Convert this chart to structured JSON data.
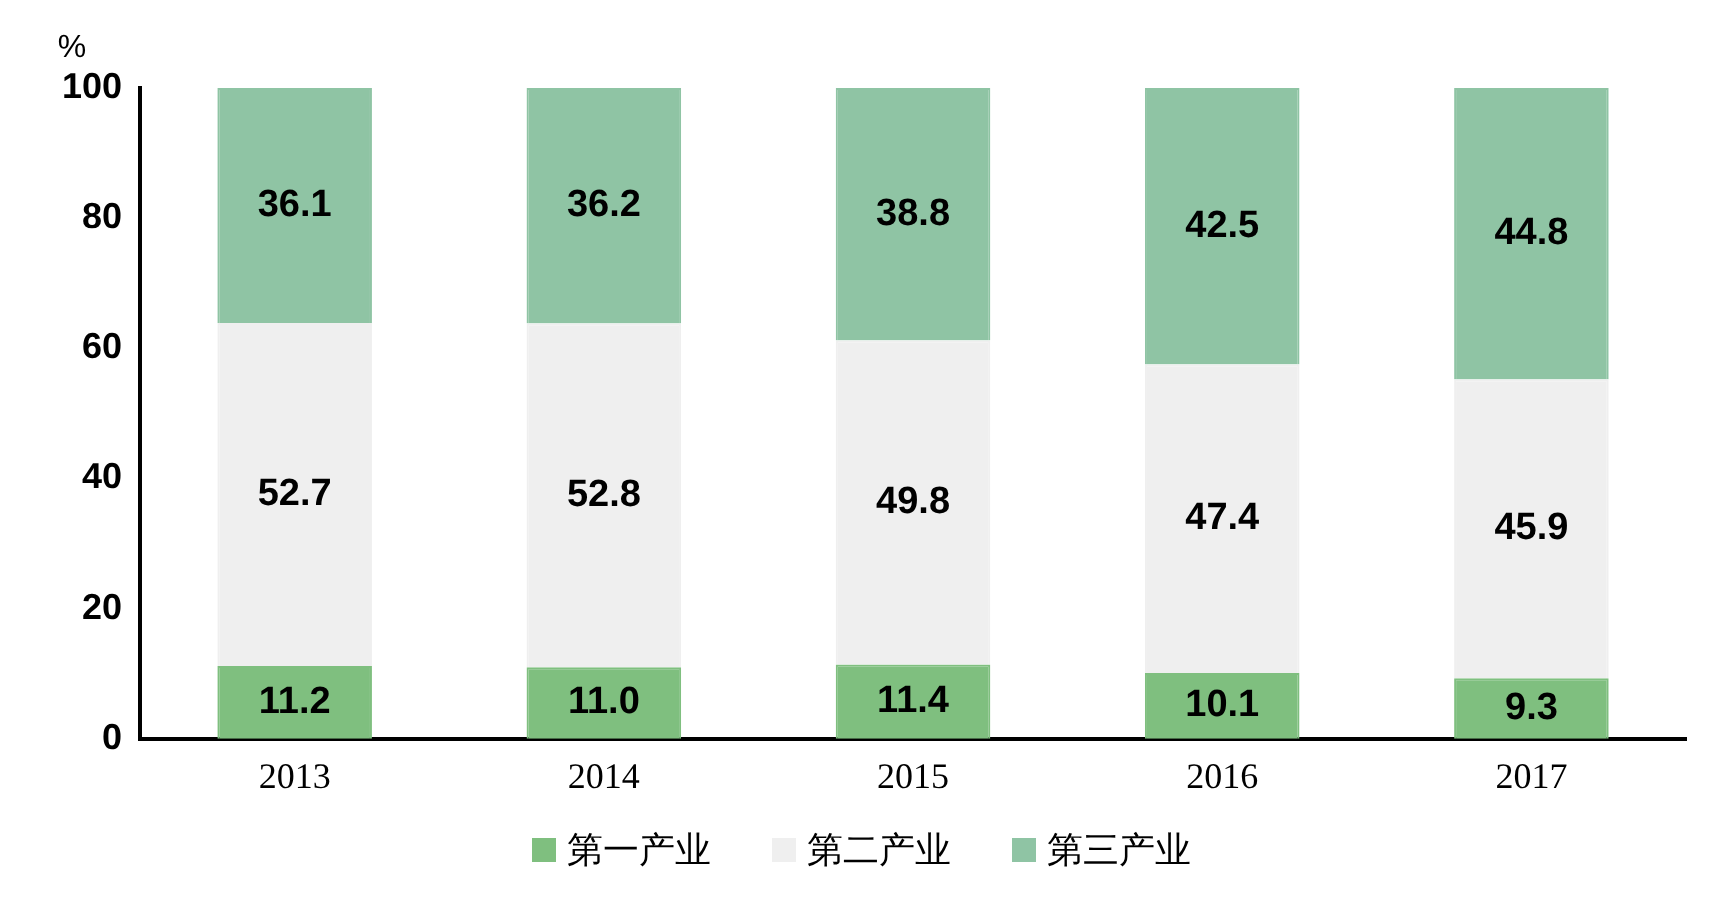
{
  "chart_data": {
    "type": "bar",
    "stacked": true,
    "ylabel": "%",
    "categories": [
      "2013",
      "2014",
      "2015",
      "2016",
      "2017"
    ],
    "series": [
      {
        "name": "第一产业",
        "color": "#7fbf7f",
        "values": [
          11.2,
          11.0,
          11.4,
          10.1,
          9.3
        ],
        "value_labels": [
          "11.2",
          "11.0",
          "11.4",
          "10.1",
          "9.3"
        ]
      },
      {
        "name": "第二产业",
        "color": "#efefef",
        "values": [
          52.7,
          52.8,
          49.8,
          47.4,
          45.9
        ],
        "value_labels": [
          "52.7",
          "52.8",
          "49.8",
          "47.4",
          "45.9"
        ]
      },
      {
        "name": "第三产业",
        "color": "#8fc4a4",
        "values": [
          36.1,
          36.2,
          38.8,
          42.5,
          44.8
        ],
        "value_labels": [
          "36.1",
          "36.2",
          "38.8",
          "42.5",
          "44.8"
        ]
      }
    ],
    "ylim": [
      0,
      100
    ],
    "yticks": [
      0,
      20,
      40,
      60,
      80,
      100
    ],
    "grid": false,
    "legend": "bottom"
  }
}
